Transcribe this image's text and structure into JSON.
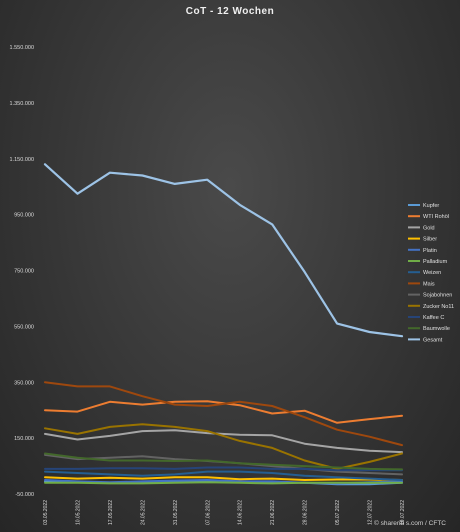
{
  "chart_data": {
    "type": "line",
    "title": "CoT - 12 Wochen",
    "credit": "© sharerib s.com / CFTC",
    "xlabel": "",
    "ylabel": "",
    "ylim": [
      -50000,
      1550000
    ],
    "yticks": [
      "1.550.000",
      "1.350.000",
      "1.150.000",
      "950.000",
      "750.000",
      "550.000",
      "350.000",
      "150.000",
      "-50.000"
    ],
    "grid": false,
    "legend_position": "right",
    "categories": [
      "03.05.2022",
      "10.05.2022",
      "17.05.2022",
      "24.05.2022",
      "31.05.2022",
      "07.06.2022",
      "14.06.2022",
      "21.06.2022",
      "28.06.2022",
      "05.07.2022",
      "12.07.2022",
      "19.07.2022"
    ],
    "series": [
      {
        "name": "Kupfer",
        "color": "#5b9bd5",
        "values": [
          -5000,
          -8000,
          -10000,
          -10000,
          -8000,
          -5000,
          -5000,
          -8000,
          -10000,
          -15000,
          -15000,
          -10000
        ]
      },
      {
        "name": "WTI Rohöl",
        "color": "#ed7d31",
        "values": [
          250000,
          245000,
          280000,
          270000,
          280000,
          282000,
          268000,
          238000,
          248000,
          205000,
          218000,
          230000
        ]
      },
      {
        "name": "Gold",
        "color": "#a5a5a5",
        "values": [
          165000,
          145000,
          158000,
          175000,
          178000,
          168000,
          162000,
          160000,
          130000,
          115000,
          105000,
          100000
        ]
      },
      {
        "name": "Silber",
        "color": "#ffc000",
        "values": [
          10000,
          5000,
          8000,
          5000,
          10000,
          10000,
          3000,
          5000,
          0,
          2000,
          2000,
          0
        ]
      },
      {
        "name": "Platin",
        "color": "#4472c4",
        "values": [
          0,
          -5000,
          -8000,
          -5000,
          -2000,
          0,
          -5000,
          -5000,
          -10000,
          -12000,
          -8000,
          -5000
        ]
      },
      {
        "name": "Palladium",
        "color": "#70ad47",
        "values": [
          -10000,
          -10000,
          -12000,
          -12000,
          -10000,
          -8000,
          -10000,
          -12000,
          -10000,
          -10000,
          -10000,
          -10000
        ]
      },
      {
        "name": "Weizen",
        "color": "#255e91",
        "values": [
          30000,
          25000,
          20000,
          15000,
          20000,
          30000,
          30000,
          25000,
          15000,
          10000,
          5000,
          0
        ]
      },
      {
        "name": "Mais",
        "color": "#9e480e",
        "values": [
          350000,
          335000,
          335000,
          300000,
          270000,
          265000,
          280000,
          265000,
          225000,
          180000,
          155000,
          125000
        ]
      },
      {
        "name": "Sojabohnen",
        "color": "#636363",
        "values": [
          90000,
          75000,
          80000,
          85000,
          75000,
          68000,
          60000,
          50000,
          40000,
          30000,
          25000,
          20000
        ]
      },
      {
        "name": "Zucker No11",
        "color": "#997300",
        "values": [
          185000,
          165000,
          190000,
          200000,
          190000,
          175000,
          140000,
          115000,
          70000,
          40000,
          65000,
          95000
        ]
      },
      {
        "name": "Kaffee C",
        "color": "#264478",
        "values": [
          40000,
          40000,
          42000,
          42000,
          40000,
          45000,
          45000,
          40000,
          40000,
          35000,
          35000,
          35000
        ]
      },
      {
        "name": "Baumwolle",
        "color": "#43682b",
        "values": [
          95000,
          80000,
          70000,
          70000,
          68000,
          70000,
          60000,
          55000,
          50000,
          45000,
          40000,
          38000
        ]
      },
      {
        "name": "Gesamt",
        "color": "#9dc3e6",
        "values": [
          1130000,
          1025000,
          1100000,
          1090000,
          1060000,
          1075000,
          985000,
          915000,
          745000,
          560000,
          530000,
          515000
        ]
      }
    ]
  }
}
